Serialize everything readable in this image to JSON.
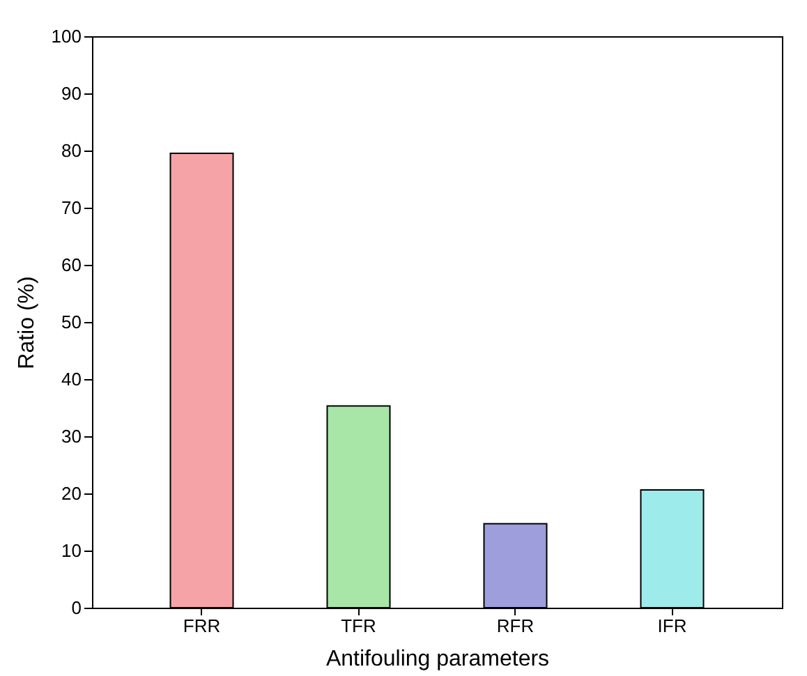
{
  "chart_data": {
    "type": "bar",
    "xlabel": "Antifouling parameters",
    "ylabel": "Ratio (%)",
    "categories": [
      "FRR",
      "TFR",
      "RFR",
      "IFR"
    ],
    "values": [
      79.5,
      35.3,
      14.7,
      20.6
    ],
    "colors": [
      "#e8323c",
      "#3cc83c",
      "#2828b4",
      "#28d2d2"
    ],
    "ylim": [
      0,
      100
    ],
    "yticks": [
      0,
      10,
      20,
      30,
      40,
      50,
      60,
      70,
      80,
      90,
      100
    ],
    "grid": false
  }
}
